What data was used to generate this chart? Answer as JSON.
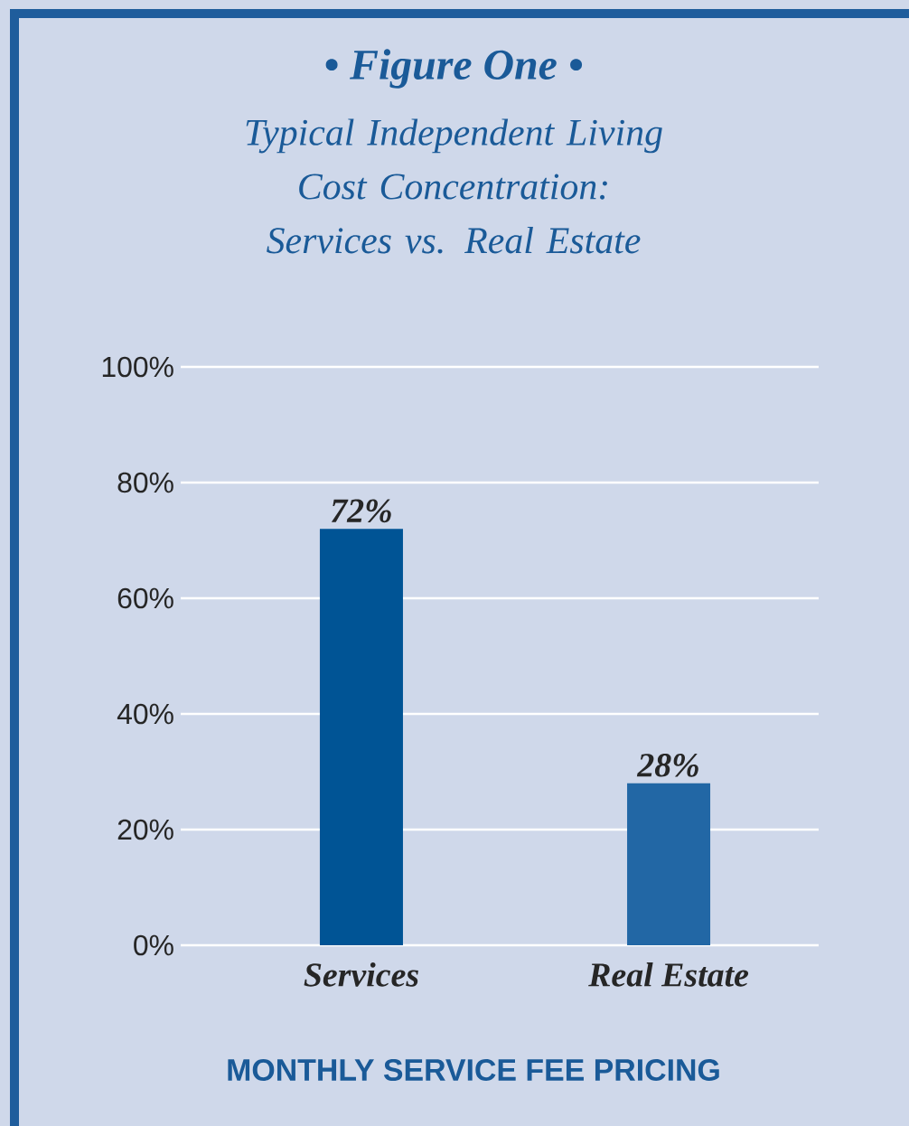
{
  "chart_data": {
    "type": "bar",
    "title": "• Figure One •",
    "subtitle": "Typical Independent Living Cost Concentration: Services vs. Real Estate",
    "categories": [
      "Services",
      "Real Estate"
    ],
    "values": [
      72,
      28
    ],
    "colors": [
      "#005495",
      "#2267a5"
    ],
    "value_labels": [
      "72%",
      "28%"
    ],
    "xlabel": "MONTHLY SERVICE FEE PRICING",
    "ylim": [
      0,
      100
    ],
    "yticks": [
      {
        "value": 0,
        "label": "0%"
      },
      {
        "value": 20,
        "label": "20%"
      },
      {
        "value": 40,
        "label": "40%"
      },
      {
        "value": 60,
        "label": "60%"
      },
      {
        "value": 80,
        "label": "80%"
      },
      {
        "value": 100,
        "label": "100%"
      }
    ],
    "grid": "y"
  }
}
